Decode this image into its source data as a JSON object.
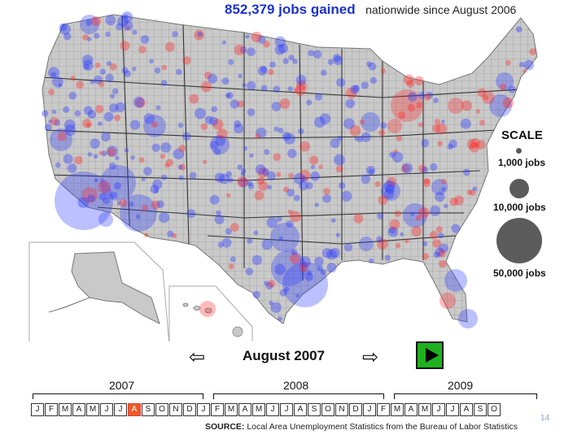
{
  "header": {
    "headline": "852,379 jobs gained",
    "subtext": "nationwide since August 2006"
  },
  "scale": {
    "title": "SCALE",
    "items": [
      {
        "label": "1,000 jobs",
        "jobs": 1000
      },
      {
        "label": "10,000 jobs",
        "jobs": 10000
      },
      {
        "label": "50,000 jobs",
        "jobs": 50000
      }
    ]
  },
  "player": {
    "current_month": "August 2007",
    "prev_icon": "left-arrow-icon",
    "next_icon": "right-arrow-icon",
    "play_icon": "play-icon"
  },
  "timeline": {
    "years": [
      "2007",
      "2008",
      "2009"
    ],
    "months_2007": [
      "J",
      "F",
      "M",
      "A",
      "M",
      "J",
      "J",
      "A",
      "S",
      "O",
      "N",
      "D"
    ],
    "months_2008": [
      "J",
      "F",
      "M",
      "A",
      "M",
      "J",
      "J",
      "A",
      "S",
      "O",
      "N",
      "D"
    ],
    "months_2009": [
      "J",
      "F",
      "M",
      "A",
      "M",
      "J",
      "J",
      "A",
      "S",
      "O"
    ],
    "selected": {
      "year": "2007",
      "month_index": 7
    }
  },
  "source": {
    "label": "SOURCE:",
    "text": "Local Area Unemployment Statistics from the Bureau of Labor Statistics"
  },
  "page_number": "14",
  "colors": {
    "gain": "#2b3bff",
    "loss": "#ff2a2a",
    "land": "#c8c8c8",
    "selected_month": "#f05a23",
    "play_button": "#1fb01f"
  }
}
